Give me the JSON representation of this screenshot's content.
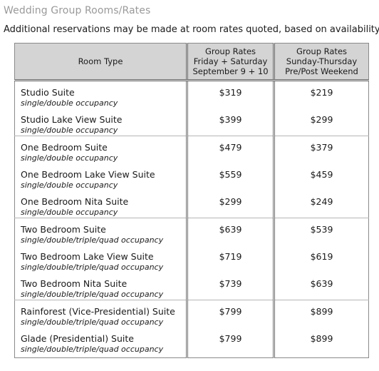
{
  "heading": "Wedding Group Rooms/Rates",
  "intro": "Additional reservations may be made at room rates quoted, based on availability.",
  "table": {
    "headers": {
      "room_type": "Room Type",
      "group_rates_line1": "Group Rates",
      "group_rates_line2": "Friday + Saturday",
      "group_rates_line3": "September 9 + 10",
      "weekday_line1": "Group Rates",
      "weekday_line2": "Sunday-Thursday",
      "weekday_line3": "Pre/Post Weekend"
    },
    "rows": [
      {
        "name": "Studio Suite",
        "occupancy": "single/double occupancy",
        "weekend": "$319",
        "weekday": "$219"
      },
      {
        "name": "Studio Lake View Suite",
        "occupancy": "single/double occupancy",
        "weekend": "$399",
        "weekday": "$299"
      },
      {
        "name": "One Bedroom Suite",
        "occupancy": "single/double occupancy",
        "weekend": "$479",
        "weekday": "$379"
      },
      {
        "name": "One Bedroom Lake View Suite",
        "occupancy": "single/double occupancy",
        "weekend": "$559",
        "weekday": "$459"
      },
      {
        "name": "One Bedroom Nita Suite",
        "occupancy": "single/double occupancy",
        "weekend": "$299",
        "weekday": "$249"
      },
      {
        "name": "Two Bedroom Suite",
        "occupancy": "single/double/triple/quad occupancy",
        "weekend": "$639",
        "weekday": "$539"
      },
      {
        "name": "Two Bedroom Lake View Suite",
        "occupancy": "single/double/triple/quad occupancy",
        "weekend": "$719",
        "weekday": "$619"
      },
      {
        "name": "Two Bedroom Nita Suite",
        "occupancy": "single/double/triple/quad occupancy",
        "weekend": "$739",
        "weekday": "$639"
      },
      {
        "name": "Rainforest (Vice-Presidential) Suite",
        "occupancy": "single/double/triple/quad occupancy",
        "weekend": "$799",
        "weekday": "$899"
      },
      {
        "name": "Glade (Presidential) Suite",
        "occupancy": "single/double/triple/quad occupancy",
        "weekend": "$799",
        "weekday": "$899"
      }
    ]
  },
  "colors": {
    "heading": "#9a9a9a",
    "header_bg": "#d4d4d4",
    "rule": "#6f6f6f"
  }
}
